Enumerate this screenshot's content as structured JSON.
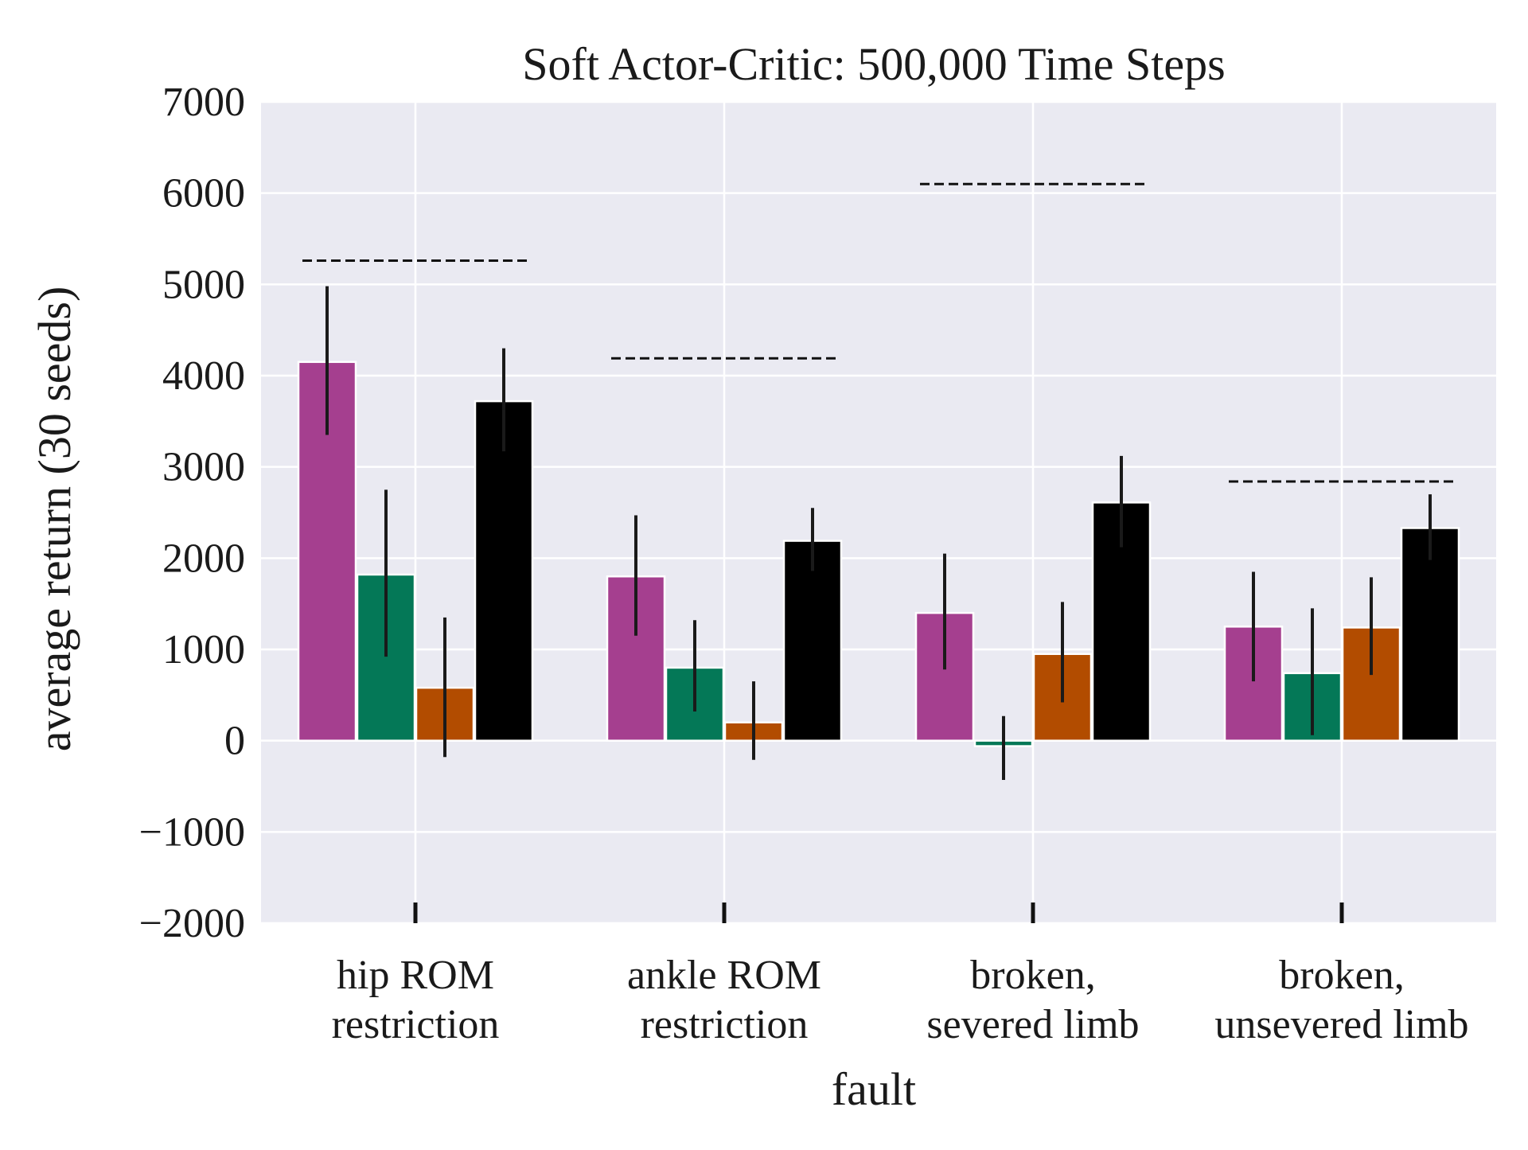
{
  "chart_data": {
    "type": "bar",
    "title": "Soft Actor-Critic: 500,000 Time Steps",
    "xlabel": "fault",
    "ylabel": "average return (30 seeds)",
    "ylim": [
      -2000,
      7000
    ],
    "yticks": [
      {
        "value": 7000,
        "label": "7000"
      },
      {
        "value": 6000,
        "label": "6000"
      },
      {
        "value": 5000,
        "label": "5000"
      },
      {
        "value": 4000,
        "label": "4000"
      },
      {
        "value": 3000,
        "label": "3000"
      },
      {
        "value": 2000,
        "label": "2000"
      },
      {
        "value": 1000,
        "label": "1000"
      },
      {
        "value": 0,
        "label": "0"
      },
      {
        "value": -1000,
        "label": "−1000"
      },
      {
        "value": -2000,
        "label": "−2000"
      }
    ],
    "grid": true,
    "background_color": "#eaeaf2",
    "grid_color": "#ffffff",
    "categories": [
      {
        "line1": "hip ROM",
        "line2": "restriction"
      },
      {
        "line1": "ankle ROM",
        "line2": "restriction"
      },
      {
        "line1": "broken,",
        "line2": "severed limb"
      },
      {
        "line1": "broken,",
        "line2": "unsevered limb"
      }
    ],
    "series": [
      {
        "color": "#a53f8f",
        "values": [
          4150,
          1800,
          1400,
          1250
        ],
        "err_low": [
          3350,
          1150,
          780,
          650
        ],
        "err_high": [
          4980,
          2470,
          2050,
          1850
        ]
      },
      {
        "color": "#047857",
        "values": [
          1820,
          800,
          -60,
          740
        ],
        "err_low": [
          920,
          320,
          -430,
          60
        ],
        "err_high": [
          2750,
          1320,
          270,
          1450
        ]
      },
      {
        "color": "#b24c00",
        "values": [
          580,
          200,
          950,
          1240
        ],
        "err_low": [
          -180,
          -210,
          420,
          720
        ],
        "err_high": [
          1350,
          650,
          1520,
          1790
        ]
      },
      {
        "color": "#000000",
        "values": [
          3720,
          2190,
          2610,
          2330
        ],
        "err_low": [
          3170,
          1860,
          2120,
          1980
        ],
        "err_high": [
          4300,
          2550,
          3120,
          2700
        ]
      }
    ],
    "reference_lines": [
      5260,
      4190,
      6100,
      2840
    ]
  }
}
